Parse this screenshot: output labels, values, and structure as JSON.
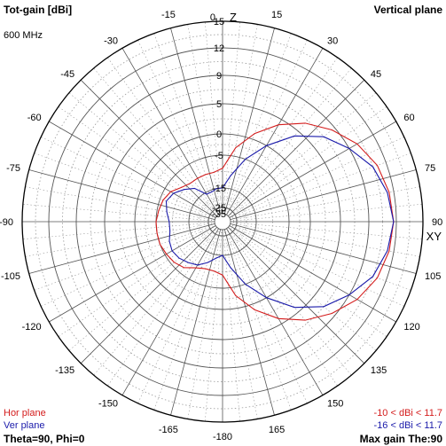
{
  "header": {
    "title_left": "Tot-gain [dBi]",
    "title_right": "Vertical plane",
    "frequency": "600 MHz"
  },
  "axis_labels": {
    "top": "Z",
    "right": "XY"
  },
  "legend": {
    "hor_label": "Hor plane",
    "ver_label": "Ver plane",
    "hor_range": "-10 < dBi < 11.7",
    "ver_range": "-16 < dBi < 11.7"
  },
  "footer": {
    "theta_phi": "Theta=90, Phi=0",
    "max_gain": "Max gain The:90"
  },
  "colors": {
    "hor_plane": "#d41c1c",
    "ver_plane": "#1a1aaa",
    "grid_solid": "#555555",
    "grid_dotted": "#9a9a9a"
  },
  "chart_data": {
    "type": "polar",
    "title": "Tot-gain [dBi]",
    "subtitle": "Vertical plane",
    "radial_ticks": [
      -35,
      -25,
      -15,
      -5,
      0,
      5,
      9,
      12,
      15
    ],
    "angle_ticks": [
      0,
      15,
      30,
      45,
      60,
      75,
      90,
      105,
      120,
      135,
      150,
      165,
      -180,
      -165,
      -150,
      -135,
      -120,
      -105,
      -90,
      -75,
      -60,
      -45,
      -30,
      -15
    ],
    "series": [
      {
        "name": "Hor plane",
        "angles": [
          0,
          10,
          20,
          30,
          40,
          50,
          60,
          70,
          80,
          90,
          100,
          110,
          120,
          130,
          140,
          150,
          160,
          170,
          180,
          190,
          200,
          210,
          220,
          230,
          240,
          250,
          260,
          270,
          280,
          290,
          300,
          310,
          320,
          330,
          340,
          350
        ],
        "values": [
          -9,
          -3,
          1,
          4,
          6.5,
          8.5,
          10,
          11,
          11.5,
          11.7,
          11.5,
          11,
          10,
          8.5,
          6.5,
          4,
          1,
          -3,
          -9,
          -10,
          -10,
          -9,
          -7,
          -6,
          -5.5,
          -5,
          -5,
          -5,
          -5.5,
          -6,
          -7,
          -9,
          -10,
          -10,
          -10,
          -10
        ]
      },
      {
        "name": "Ver plane",
        "angles": [
          0,
          10,
          20,
          30,
          40,
          50,
          60,
          70,
          80,
          90,
          100,
          110,
          120,
          130,
          140,
          150,
          160,
          170,
          180,
          190,
          200,
          210,
          220,
          230,
          240,
          250,
          260,
          270,
          280,
          290,
          300,
          310,
          320,
          330,
          340,
          350
        ],
        "values": [
          -15,
          -11,
          -5,
          0,
          4,
          7,
          9,
          10.5,
          11.3,
          11.7,
          11.3,
          10.5,
          9,
          7,
          4,
          0,
          -5,
          -11,
          -15,
          -14,
          -12,
          -10,
          -9,
          -8,
          -7.5,
          -8,
          -9,
          -9,
          -8,
          -7,
          -8,
          -10,
          -12,
          -16,
          -16,
          -15
        ]
      }
    ]
  }
}
